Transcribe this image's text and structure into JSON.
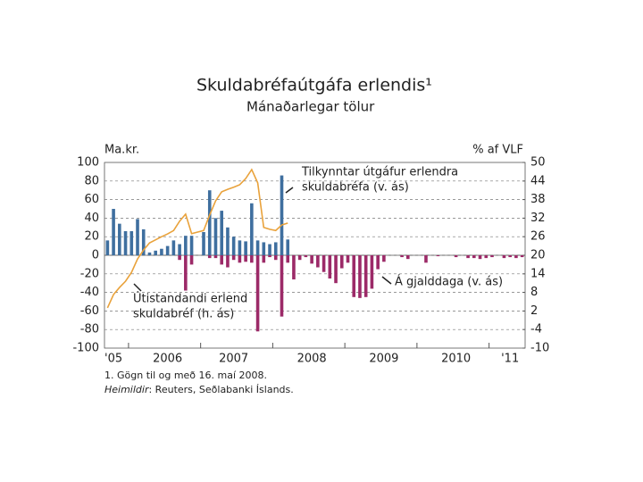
{
  "chart_data": {
    "type": "bar",
    "title": "Skuldabréfaútgáfa erlendis¹",
    "subtitle": "Mánaðarlegar tölur",
    "ylabel": "Ma.kr.",
    "y2label": "% af VLF",
    "footnote": "1. Gögn til og með 16. maí 2008.",
    "source_label": "Heimildir",
    "source_text": ": Reuters, Seðlabanki Íslands.",
    "categories": [
      null,
      "'05",
      null,
      null,
      null,
      null,
      null,
      null,
      null,
      null,
      "2006",
      null,
      null,
      null,
      null,
      null,
      null,
      null,
      null,
      null,
      null,
      "2007",
      null,
      null,
      null,
      null,
      null,
      null,
      null,
      null,
      null,
      null,
      null,
      null,
      "2008",
      null,
      null,
      null,
      null,
      null,
      null,
      null,
      null,
      null,
      null,
      null,
      "2009",
      null,
      null,
      null,
      null,
      null,
      null,
      null,
      null,
      null,
      null,
      null,
      "2010",
      null,
      null,
      null,
      null,
      null,
      null,
      null,
      null,
      "'11",
      null,
      null
    ],
    "ylim": [
      -100,
      100
    ],
    "yticks": [
      -100,
      -80,
      -60,
      -40,
      -20,
      0,
      20,
      40,
      60,
      80,
      100
    ],
    "y2lim": [
      -10,
      50
    ],
    "y2ticks": [
      -10,
      -4,
      2,
      8,
      14,
      20,
      26,
      32,
      38,
      44,
      50
    ],
    "grid": true,
    "series": [
      {
        "name_lines": [
          "Tilkynntar útgáfur erlendra",
          "skuldabréfa  (v. ás)"
        ],
        "color": "#3f6f9f",
        "kind": "bar",
        "values": [
          16,
          50,
          34,
          26,
          26,
          39,
          28,
          3,
          5,
          7,
          10,
          16,
          12,
          21,
          21,
          0,
          25,
          70,
          40,
          48,
          30,
          20,
          16,
          15,
          56,
          16,
          14,
          12,
          14,
          86,
          17,
          0,
          0,
          0,
          0,
          0,
          0,
          0,
          0,
          0,
          0,
          0,
          0,
          0,
          0,
          0,
          0,
          0,
          0,
          0,
          0,
          0,
          0,
          0,
          0,
          0,
          0,
          0,
          0,
          0,
          0,
          0,
          0,
          0,
          0,
          0,
          0,
          0,
          0,
          0
        ]
      },
      {
        "name_lines": [
          "Á gjalddaga (v. ás)"
        ],
        "color": "#9c2a68",
        "kind": "bar",
        "values": [
          0,
          0,
          0,
          0,
          0,
          0,
          0,
          0,
          0,
          0,
          0,
          0,
          -5,
          -38,
          -10,
          0,
          0,
          -3,
          -3,
          -10,
          -13,
          -5,
          -8,
          -7,
          -8,
          -82,
          -8,
          -2,
          -5,
          -66,
          -8,
          -26,
          -5,
          -2,
          -9,
          -13,
          -18,
          -25,
          -30,
          -14,
          -8,
          -45,
          -46,
          -45,
          -36,
          -15,
          -7,
          0,
          0,
          -2,
          -4,
          0,
          0,
          -8,
          0,
          -1,
          0,
          0,
          -2,
          0,
          -3,
          -3,
          -4,
          -3,
          -2,
          0,
          -3,
          -2,
          -3,
          -2
        ]
      },
      {
        "name_lines": [
          "Útistandandi erlend",
          "skuldabréf (h. ás)"
        ],
        "color": "#e9a23b",
        "kind": "line",
        "axis": "y2",
        "values": [
          3,
          7.3,
          9.6,
          11.6,
          14.5,
          18.8,
          21.7,
          24,
          25,
          26,
          26.9,
          28,
          31,
          33.3,
          27,
          27.5,
          28,
          33,
          37.6,
          40.5,
          41.3,
          42,
          42.8,
          44.8,
          47.7,
          43.4,
          29,
          28.4,
          28,
          29.8,
          30.4,
          null,
          null,
          null,
          null,
          null,
          null,
          null,
          null,
          null,
          null,
          null,
          null,
          null,
          null,
          null,
          null,
          null,
          null,
          null,
          null,
          null,
          null,
          null,
          null,
          null,
          null,
          null,
          null,
          null,
          null,
          null,
          null,
          null,
          null,
          null,
          null,
          null,
          null,
          null
        ]
      }
    ]
  }
}
